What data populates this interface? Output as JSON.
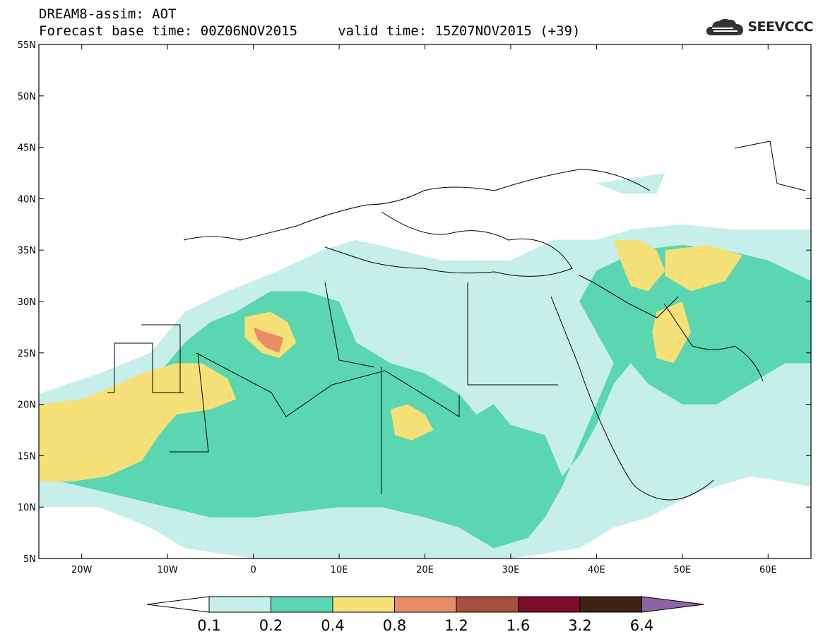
{
  "header": {
    "title_line1": "DREAM8-assim: AOT",
    "title_line2": "Forecast base time: 00Z06NOV2015     valid time: 15Z07NOV2015 (+39)",
    "logo_text": "SEEVCCC",
    "logo_icon": "cloud-icon"
  },
  "chart_data": {
    "type": "heatmap",
    "variable": "AOT",
    "lon_range": [
      -25,
      65
    ],
    "lat_range": [
      5,
      55
    ],
    "x_ticks": [
      {
        "value": -20,
        "label": "20W"
      },
      {
        "value": -10,
        "label": "10W"
      },
      {
        "value": 0,
        "label": "0"
      },
      {
        "value": 10,
        "label": "10E"
      },
      {
        "value": 20,
        "label": "20E"
      },
      {
        "value": 30,
        "label": "30E"
      },
      {
        "value": 40,
        "label": "40E"
      },
      {
        "value": 50,
        "label": "50E"
      },
      {
        "value": 60,
        "label": "60E"
      }
    ],
    "y_ticks": [
      {
        "value": 55,
        "label": "55N"
      },
      {
        "value": 50,
        "label": "50N"
      },
      {
        "value": 45,
        "label": "45N"
      },
      {
        "value": 40,
        "label": "40N"
      },
      {
        "value": 35,
        "label": "35N"
      },
      {
        "value": 30,
        "label": "30N"
      },
      {
        "value": 25,
        "label": "25N"
      },
      {
        "value": 20,
        "label": "20N"
      },
      {
        "value": 15,
        "label": "15N"
      },
      {
        "value": 10,
        "label": "10N"
      },
      {
        "value": 5,
        "label": "5N"
      }
    ],
    "colorbar": {
      "levels": [
        "0.1",
        "0.2",
        "0.4",
        "0.8",
        "1.2",
        "1.6",
        "3.2",
        "6.4"
      ],
      "colors": [
        "#ffffff",
        "#c6efe9",
        "#5ad6b0",
        "#f5e177",
        "#e98d66",
        "#a94d3d",
        "#7b0f29",
        "#3c2313",
        "#8e63a4"
      ]
    },
    "regions": [
      {
        "level": "0.1-0.2",
        "color": "#c6efe9",
        "polygon": [
          [
            -25,
            21
          ],
          [
            -18,
            23
          ],
          [
            -12,
            25
          ],
          [
            -8,
            29
          ],
          [
            -3,
            31
          ],
          [
            3,
            33
          ],
          [
            8,
            35
          ],
          [
            12,
            36
          ],
          [
            17,
            35
          ],
          [
            22,
            34
          ],
          [
            26,
            34
          ],
          [
            30,
            34
          ],
          [
            35,
            36
          ],
          [
            40,
            36
          ],
          [
            44,
            37
          ],
          [
            50,
            37.5
          ],
          [
            56,
            37
          ],
          [
            60,
            37
          ],
          [
            65,
            37
          ],
          [
            65,
            12
          ],
          [
            58,
            13
          ],
          [
            52,
            11.5
          ],
          [
            46,
            9
          ],
          [
            42,
            8
          ],
          [
            38,
            6
          ],
          [
            30,
            5
          ],
          [
            20,
            5
          ],
          [
            10,
            5
          ],
          [
            0,
            5
          ],
          [
            -8,
            6
          ],
          [
            -12,
            8
          ],
          [
            -18,
            10
          ],
          [
            -25,
            10
          ]
        ]
      },
      {
        "level": "0.1-0.2",
        "color": "#c6efe9",
        "polygon": [
          [
            40,
            41.5
          ],
          [
            44,
            42
          ],
          [
            48,
            42.5
          ],
          [
            47,
            40.5
          ],
          [
            43,
            40.5
          ]
        ]
      },
      {
        "level": "0.2-0.4",
        "color": "#5ad6b0",
        "polygon": [
          [
            -25,
            17
          ],
          [
            -18,
            18
          ],
          [
            -15,
            20
          ],
          [
            -10,
            24
          ],
          [
            -8,
            26
          ],
          [
            -5,
            28
          ],
          [
            -2,
            29
          ],
          [
            2,
            31
          ],
          [
            6,
            31
          ],
          [
            10,
            30
          ],
          [
            12,
            26
          ],
          [
            16,
            24
          ],
          [
            20,
            23
          ],
          [
            24,
            21
          ],
          [
            26,
            19
          ],
          [
            28,
            20
          ],
          [
            30,
            18
          ],
          [
            34,
            17
          ],
          [
            36,
            13
          ],
          [
            38,
            15
          ],
          [
            40,
            18
          ],
          [
            42,
            22
          ],
          [
            44,
            24
          ],
          [
            46,
            22
          ],
          [
            50,
            20
          ],
          [
            54,
            20
          ],
          [
            58,
            22
          ],
          [
            62,
            24
          ],
          [
            65,
            24
          ],
          [
            65,
            32
          ],
          [
            60,
            34
          ],
          [
            55,
            35
          ],
          [
            50,
            35.5
          ],
          [
            45,
            35
          ],
          [
            40,
            33
          ],
          [
            38,
            30
          ],
          [
            40,
            27
          ],
          [
            42,
            24
          ],
          [
            40,
            20
          ],
          [
            38,
            16
          ],
          [
            36,
            12
          ],
          [
            34,
            9
          ],
          [
            32,
            7
          ],
          [
            28,
            6
          ],
          [
            24,
            8
          ],
          [
            20,
            9
          ],
          [
            15,
            10
          ],
          [
            10,
            10
          ],
          [
            5,
            9.5
          ],
          [
            0,
            9
          ],
          [
            -5,
            9
          ],
          [
            -10,
            10
          ],
          [
            -15,
            11
          ],
          [
            -20,
            12
          ],
          [
            -25,
            13
          ]
        ]
      },
      {
        "level": "0.4-0.8",
        "color": "#f5e177",
        "polygon": [
          [
            -25,
            20
          ],
          [
            -20,
            20.5
          ],
          [
            -17,
            21.5
          ],
          [
            -13,
            23
          ],
          [
            -9,
            24
          ],
          [
            -6,
            24
          ],
          [
            -3,
            22.5
          ],
          [
            -2,
            20.5
          ],
          [
            -5,
            19.5
          ],
          [
            -9,
            19
          ],
          [
            -11,
            17
          ],
          [
            -13,
            14.5
          ],
          [
            -17,
            13
          ],
          [
            -21,
            12.5
          ],
          [
            -25,
            12.5
          ]
        ]
      },
      {
        "level": "0.4-0.8",
        "color": "#f5e177",
        "polygon": [
          [
            -1,
            28.5
          ],
          [
            2,
            29
          ],
          [
            4,
            28
          ],
          [
            5,
            26
          ],
          [
            3,
            24.5
          ],
          [
            1,
            25
          ],
          [
            -1,
            26.5
          ]
        ]
      },
      {
        "level": "0.4-0.8",
        "color": "#f5e177",
        "polygon": [
          [
            16,
            19.5
          ],
          [
            18,
            20
          ],
          [
            20,
            19
          ],
          [
            21,
            17.5
          ],
          [
            18.5,
            16.5
          ],
          [
            16.5,
            17
          ]
        ]
      },
      {
        "level": "0.4-0.8",
        "color": "#f5e177",
        "polygon": [
          [
            42,
            36
          ],
          [
            45,
            36
          ],
          [
            47,
            35
          ],
          [
            48,
            33
          ],
          [
            46,
            31
          ],
          [
            44,
            31.5
          ],
          [
            43,
            33.5
          ]
        ]
      },
      {
        "level": "0.4-0.8",
        "color": "#f5e177",
        "polygon": [
          [
            48,
            35
          ],
          [
            53,
            35.5
          ],
          [
            57,
            34.5
          ],
          [
            55,
            32
          ],
          [
            51,
            31
          ],
          [
            48,
            32.5
          ]
        ]
      },
      {
        "level": "0.4-0.8",
        "color": "#f5e177",
        "polygon": [
          [
            47,
            29
          ],
          [
            50,
            30
          ],
          [
            51,
            27
          ],
          [
            49,
            24
          ],
          [
            47,
            24.5
          ],
          [
            46.5,
            27
          ]
        ]
      },
      {
        "level": "0.8-1.2",
        "color": "#e98d66",
        "polygon": [
          [
            0,
            27.5
          ],
          [
            1.5,
            27
          ],
          [
            3.5,
            26.5
          ],
          [
            3,
            25
          ],
          [
            1.5,
            25.5
          ],
          [
            0.5,
            26.3
          ]
        ]
      }
    ]
  }
}
